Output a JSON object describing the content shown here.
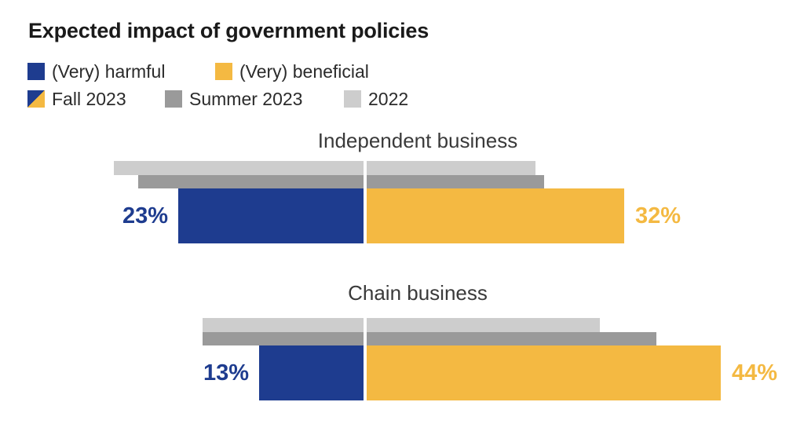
{
  "title": "Expected impact of government policies",
  "legend": {
    "row1": [
      {
        "label": "(Very) harmful",
        "swatch": "solid",
        "color": "#1e3c8f"
      },
      {
        "label": "(Very) beneficial",
        "swatch": "solid",
        "color": "#f4b942"
      }
    ],
    "row2": [
      {
        "label": "Fall 2023",
        "swatch": "diagonal-split",
        "colors": [
          "#1e3c8f",
          "#f4b942"
        ]
      },
      {
        "label": "Summer 2023",
        "swatch": "solid",
        "color": "#9a9a9a"
      },
      {
        "label": "2022",
        "swatch": "solid",
        "color": "#cdcdcd"
      }
    ]
  },
  "chart_data": {
    "type": "bar",
    "variant": "diverging-horizontal",
    "title": "Expected impact of government policies",
    "unit": "percent",
    "left_direction": "(Very) harmful",
    "right_direction": "(Very) beneficial",
    "grid": false,
    "legend_position": "top-left",
    "series_colors": {
      "harmful": "#1e3c8f",
      "beneficial": "#f4b942",
      "summer_2023": "#9a9a9a",
      "year_2022": "#cdcdcd"
    },
    "groups": [
      {
        "label": "Independent business",
        "rows": [
          {
            "period": "2022",
            "harmful": 31,
            "beneficial": 21,
            "approx": true,
            "color_harmful": "#cdcdcd",
            "color_beneficial": "#cdcdcd",
            "value_labels": null
          },
          {
            "period": "Summer 2023",
            "harmful": 28,
            "beneficial": 22,
            "approx": true,
            "color_harmful": "#9a9a9a",
            "color_beneficial": "#9a9a9a",
            "value_labels": null
          },
          {
            "period": "Fall 2023",
            "harmful": 23,
            "beneficial": 32,
            "approx": false,
            "color_harmful": "#1e3c8f",
            "color_beneficial": "#f4b942",
            "value_labels": {
              "harmful": "23%",
              "beneficial": "32%"
            }
          }
        ]
      },
      {
        "label": "Chain business",
        "rows": [
          {
            "period": "2022",
            "harmful": 20,
            "beneficial": 29,
            "approx": true,
            "color_harmful": "#cdcdcd",
            "color_beneficial": "#cdcdcd",
            "value_labels": null
          },
          {
            "period": "Summer 2023",
            "harmful": 20,
            "beneficial": 36,
            "approx": true,
            "color_harmful": "#9a9a9a",
            "color_beneficial": "#9a9a9a",
            "value_labels": null
          },
          {
            "period": "Fall 2023",
            "harmful": 13,
            "beneficial": 44,
            "approx": false,
            "color_harmful": "#1e3c8f",
            "color_beneficial": "#f4b942",
            "value_labels": {
              "harmful": "13%",
              "beneficial": "44%"
            }
          }
        ]
      }
    ]
  }
}
